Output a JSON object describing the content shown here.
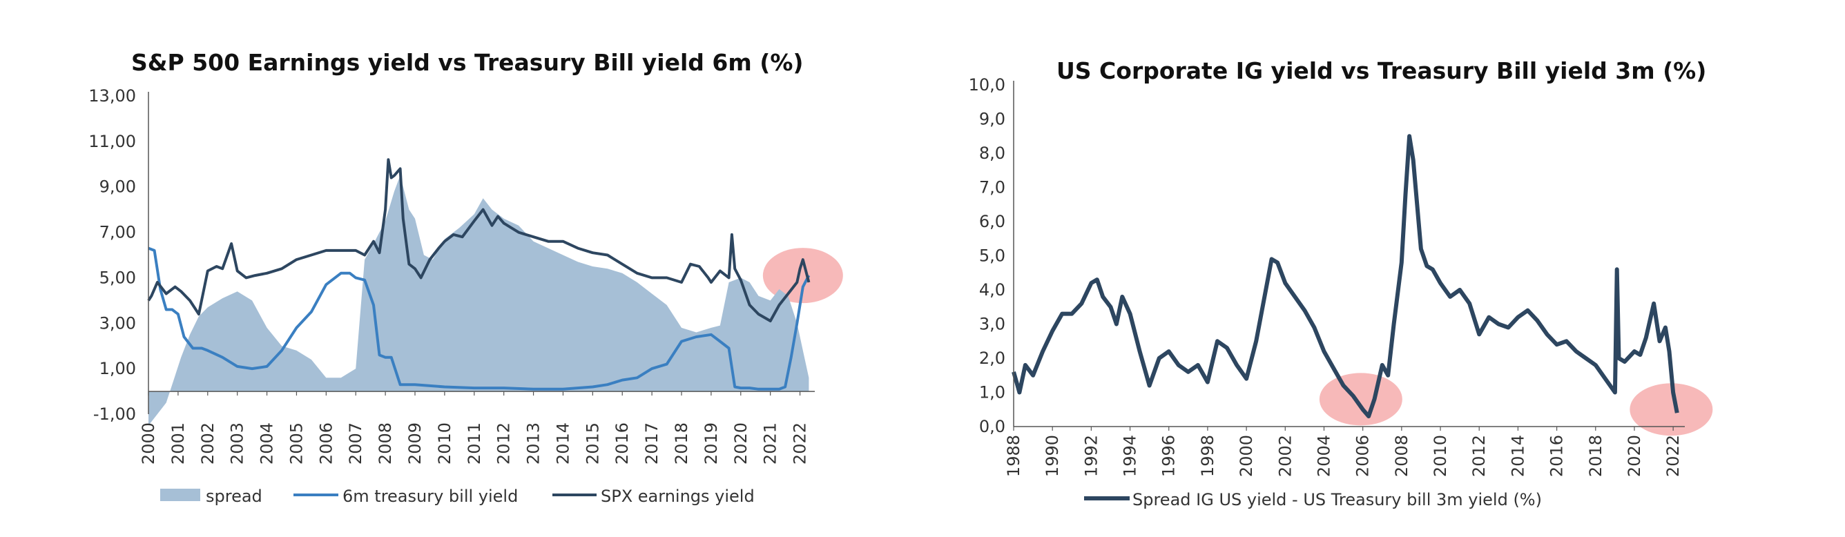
{
  "chart_data": [
    {
      "type": "area+line",
      "title": "S&P 500 Earnings yield vs Treasury Bill yield 6m (%)",
      "xlabel": "",
      "ylabel": "",
      "ylim": [
        -1,
        13
      ],
      "xlim": [
        2000,
        2022.5
      ],
      "y_ticks": [
        "13,00",
        "11,00",
        "9,00",
        "7,00",
        "5,00",
        "3,00",
        "1,00",
        "-1,00"
      ],
      "x_ticks": [
        "2000",
        "2001",
        "2002",
        "2003",
        "2004",
        "2005",
        "2006",
        "2007",
        "2008",
        "2009",
        "2010",
        "2011",
        "2012",
        "2013",
        "2014",
        "2015",
        "2016",
        "2017",
        "2018",
        "2019",
        "2020",
        "2021",
        "2022"
      ],
      "legend": [
        "spread",
        "6m treasury bill yield",
        "SPX earnings yield"
      ],
      "legend_position": "bottom",
      "highlight": {
        "x": 2022.1,
        "y": 5.1,
        "color": "#f08080"
      },
      "series": [
        {
          "name": "spread",
          "kind": "area",
          "color": "#a6bfd6",
          "x": [
            2000.0,
            2000.3,
            2000.6,
            2000.85,
            2001.1,
            2001.4,
            2001.7,
            2002.0,
            2002.5,
            2003.0,
            2003.5,
            2004.0,
            2004.5,
            2005.0,
            2005.5,
            2006.0,
            2006.5,
            2007.0,
            2007.3,
            2007.6,
            2008.0,
            2008.3,
            2008.5,
            2008.8,
            2009.0,
            2009.3,
            2009.6,
            2010.0,
            2010.5,
            2011.0,
            2011.3,
            2011.6,
            2012.0,
            2012.5,
            2013.0,
            2013.5,
            2014.0,
            2014.5,
            2015.0,
            2015.5,
            2016.0,
            2016.5,
            2017.0,
            2017.5,
            2018.0,
            2018.5,
            2019.0,
            2019.3,
            2019.6,
            2020.0,
            2020.3,
            2020.6,
            2021.0,
            2021.3,
            2021.6,
            2021.9,
            2022.1,
            2022.3
          ],
          "y": [
            -1.5,
            -1.0,
            -0.5,
            0.5,
            1.5,
            2.5,
            3.3,
            3.7,
            4.1,
            4.4,
            4.0,
            2.8,
            2.0,
            1.8,
            1.4,
            0.6,
            0.6,
            1.0,
            5.8,
            6.5,
            7.5,
            8.8,
            9.5,
            8.0,
            7.6,
            6.0,
            5.8,
            6.7,
            7.2,
            7.8,
            8.5,
            8.0,
            7.6,
            7.3,
            6.6,
            6.3,
            6.0,
            5.7,
            5.5,
            5.4,
            5.2,
            4.8,
            4.3,
            3.8,
            2.8,
            2.6,
            2.8,
            2.9,
            4.8,
            5.0,
            4.8,
            4.2,
            4.0,
            4.5,
            4.2,
            3.0,
            1.8,
            0.6
          ]
        },
        {
          "name": "6m treasury bill yield",
          "kind": "line",
          "color": "#3a7fc1",
          "x": [
            2000.0,
            2000.2,
            2000.4,
            2000.6,
            2000.8,
            2001.0,
            2001.2,
            2001.5,
            2001.8,
            2002.0,
            2002.5,
            2003.0,
            2003.5,
            2004.0,
            2004.5,
            2005.0,
            2005.5,
            2006.0,
            2006.5,
            2006.8,
            2007.0,
            2007.3,
            2007.6,
            2007.8,
            2008.0,
            2008.2,
            2008.5,
            2008.8,
            2009.0,
            2010.0,
            2011.0,
            2012.0,
            2013.0,
            2014.0,
            2015.0,
            2015.5,
            2016.0,
            2016.5,
            2017.0,
            2017.5,
            2018.0,
            2018.5,
            2019.0,
            2019.3,
            2019.6,
            2019.8,
            2020.0,
            2020.3,
            2020.6,
            2021.0,
            2021.3,
            2021.5,
            2021.7,
            2021.9,
            2022.1,
            2022.3
          ],
          "y": [
            6.3,
            6.2,
            4.5,
            3.6,
            3.6,
            3.4,
            2.4,
            1.9,
            1.9,
            1.8,
            1.5,
            1.1,
            1.0,
            1.1,
            1.8,
            2.8,
            3.5,
            4.7,
            5.2,
            5.2,
            5.0,
            4.9,
            3.8,
            1.6,
            1.5,
            1.5,
            0.3,
            0.3,
            0.3,
            0.2,
            0.15,
            0.15,
            0.1,
            0.1,
            0.2,
            0.3,
            0.5,
            0.6,
            1.0,
            1.2,
            2.2,
            2.4,
            2.5,
            2.2,
            1.9,
            0.2,
            0.15,
            0.15,
            0.1,
            0.1,
            0.1,
            0.2,
            1.5,
            3.0,
            4.6,
            5.1
          ]
        },
        {
          "name": "SPX earnings yield",
          "kind": "line",
          "color": "#2d4660",
          "x": [
            2000.0,
            2000.1,
            2000.3,
            2000.6,
            2000.9,
            2001.1,
            2001.4,
            2001.7,
            2002.0,
            2002.3,
            2002.5,
            2002.8,
            2003.0,
            2003.3,
            2003.6,
            2004.0,
            2004.5,
            2005.0,
            2005.5,
            2006.0,
            2006.5,
            2007.0,
            2007.3,
            2007.6,
            2007.8,
            2008.0,
            2008.1,
            2008.2,
            2008.3,
            2008.5,
            2008.6,
            2008.8,
            2009.0,
            2009.2,
            2009.5,
            2009.8,
            2010.0,
            2010.3,
            2010.6,
            2011.0,
            2011.3,
            2011.6,
            2011.8,
            2012.0,
            2012.5,
            2013.0,
            2013.5,
            2014.0,
            2014.5,
            2015.0,
            2015.5,
            2016.0,
            2016.5,
            2017.0,
            2017.5,
            2018.0,
            2018.3,
            2018.6,
            2018.9,
            2019.0,
            2019.3,
            2019.6,
            2019.7,
            2019.8,
            2020.0,
            2020.3,
            2020.6,
            2021.0,
            2021.3,
            2021.6,
            2021.9,
            2022.0,
            2022.1,
            2022.2,
            2022.3
          ],
          "y": [
            4.0,
            4.2,
            4.8,
            4.3,
            4.6,
            4.4,
            4.0,
            3.4,
            5.3,
            5.5,
            5.4,
            6.5,
            5.3,
            5.0,
            5.1,
            5.2,
            5.4,
            5.8,
            6.0,
            6.2,
            6.2,
            6.2,
            6.0,
            6.6,
            6.1,
            8.0,
            10.2,
            9.4,
            9.5,
            9.8,
            7.6,
            5.6,
            5.4,
            5.0,
            5.8,
            6.3,
            6.6,
            6.9,
            6.8,
            7.5,
            8.0,
            7.3,
            7.7,
            7.4,
            7.0,
            6.8,
            6.6,
            6.6,
            6.3,
            6.1,
            6.0,
            5.6,
            5.2,
            5.0,
            5.0,
            4.8,
            5.6,
            5.5,
            5.0,
            4.8,
            5.3,
            5.0,
            6.9,
            5.4,
            4.9,
            3.8,
            3.4,
            3.1,
            3.8,
            4.3,
            4.8,
            5.4,
            5.8,
            5.3,
            4.8
          ]
        }
      ]
    },
    {
      "type": "line",
      "title": "US Corporate IG yield vs Treasury Bill yield 3m (%)",
      "xlabel": "",
      "ylabel": "",
      "ylim": [
        0,
        10
      ],
      "xlim": [
        1988,
        2022.6
      ],
      "y_ticks": [
        "10,0",
        "9,0",
        "8,0",
        "7,0",
        "6,0",
        "5,0",
        "4,0",
        "3,0",
        "2,0",
        "1,0",
        "0,0"
      ],
      "x_ticks": [
        "1988",
        "1990",
        "1992",
        "1994",
        "1996",
        "1998",
        "2000",
        "2002",
        "2004",
        "2006",
        "2008",
        "2010",
        "2012",
        "2014",
        "2016",
        "2018",
        "2020",
        "2022"
      ],
      "legend": [
        "Spread IG US yield - US Treasury bill 3m yield (%)"
      ],
      "legend_position": "bottom",
      "highlights": [
        {
          "x": 2005.9,
          "y": 0.8,
          "color": "#f08080"
        },
        {
          "x": 2021.9,
          "y": 0.5,
          "color": "#f08080"
        }
      ],
      "series": [
        {
          "name": "Spread IG US yield - US Treasury bill 3m yield (%)",
          "color": "#2d4660",
          "x": [
            1988.0,
            1988.3,
            1988.6,
            1989.0,
            1989.5,
            1990.0,
            1990.5,
            1991.0,
            1991.5,
            1992.0,
            1992.3,
            1992.6,
            1993.0,
            1993.3,
            1993.6,
            1994.0,
            1994.5,
            1995.0,
            1995.5,
            1996.0,
            1996.5,
            1997.0,
            1997.5,
            1998.0,
            1998.5,
            1999.0,
            1999.5,
            2000.0,
            2000.5,
            2001.0,
            2001.3,
            2001.6,
            2002.0,
            2002.5,
            2003.0,
            2003.5,
            2004.0,
            2004.5,
            2005.0,
            2005.5,
            2006.0,
            2006.3,
            2006.6,
            2007.0,
            2007.3,
            2007.6,
            2008.0,
            2008.2,
            2008.4,
            2008.6,
            2008.8,
            2009.0,
            2009.3,
            2009.6,
            2010.0,
            2010.5,
            2011.0,
            2011.5,
            2012.0,
            2012.5,
            2013.0,
            2013.5,
            2014.0,
            2014.5,
            2015.0,
            2015.5,
            2016.0,
            2016.5,
            2017.0,
            2017.5,
            2018.0,
            2018.5,
            2019.0,
            2019.1,
            2019.2,
            2019.5,
            2020.0,
            2020.3,
            2020.6,
            2021.0,
            2021.3,
            2021.6,
            2021.8,
            2022.0,
            2022.2
          ],
          "y": [
            1.6,
            1.0,
            1.8,
            1.5,
            2.2,
            2.8,
            3.3,
            3.3,
            3.6,
            4.2,
            4.3,
            3.8,
            3.5,
            3.0,
            3.8,
            3.3,
            2.2,
            1.2,
            2.0,
            2.2,
            1.8,
            1.6,
            1.8,
            1.3,
            2.5,
            2.3,
            1.8,
            1.4,
            2.5,
            4.0,
            4.9,
            4.8,
            4.2,
            3.8,
            3.4,
            2.9,
            2.2,
            1.7,
            1.2,
            0.9,
            0.5,
            0.3,
            0.8,
            1.8,
            1.5,
            3.0,
            4.8,
            6.8,
            8.5,
            7.8,
            6.5,
            5.2,
            4.7,
            4.6,
            4.2,
            3.8,
            4.0,
            3.6,
            2.7,
            3.2,
            3.0,
            2.9,
            3.2,
            3.4,
            3.1,
            2.7,
            2.4,
            2.5,
            2.2,
            2.0,
            1.8,
            1.4,
            1.0,
            4.6,
            2.0,
            1.9,
            2.2,
            2.1,
            2.6,
            3.6,
            2.5,
            2.9,
            2.2,
            1.0,
            0.4
          ]
        }
      ]
    }
  ]
}
